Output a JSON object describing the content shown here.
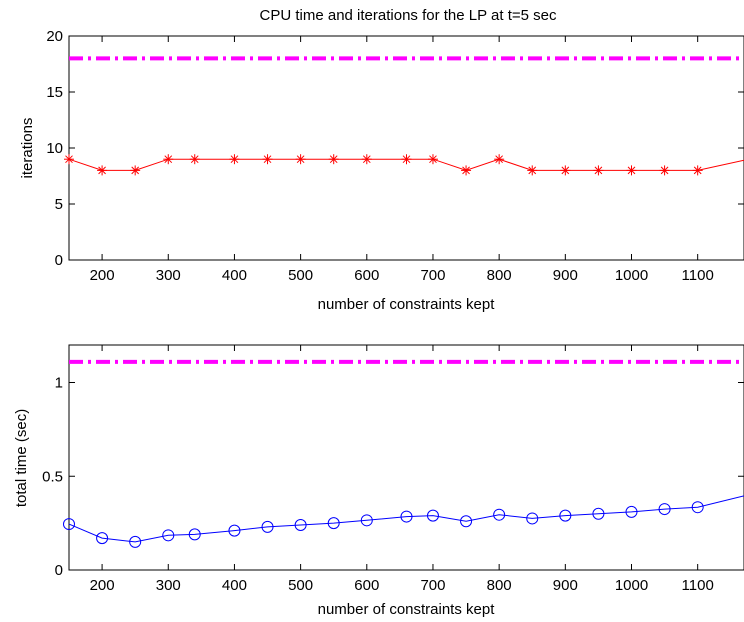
{
  "chart_data": [
    {
      "type": "line",
      "title": "CPU time and iterations for the LP at t=5 sec",
      "xlabel": "number of constraints kept",
      "ylabel": "iterations",
      "xlim": [
        150,
        1170
      ],
      "ylim": [
        0,
        20
      ],
      "xticks": [
        200,
        300,
        400,
        500,
        600,
        700,
        800,
        900,
        1000,
        1100
      ],
      "yticks": [
        0,
        5,
        10,
        15,
        20
      ],
      "grid": false,
      "series": [
        {
          "color": "#ff0000",
          "marker": "asterisk",
          "style": "solid",
          "x": [
            150,
            200,
            250,
            300,
            340,
            400,
            450,
            500,
            550,
            600,
            660,
            700,
            750,
            800,
            850,
            900,
            950,
            1000,
            1050,
            1100
          ],
          "y": [
            9,
            8,
            8,
            9,
            9,
            9,
            9,
            9,
            9,
            9,
            9,
            9,
            8,
            9,
            8,
            8,
            8,
            8,
            8,
            8
          ],
          "extends_to": [
            1170,
            8.9
          ]
        },
        {
          "color": "#ff00ff",
          "marker": "none",
          "style": "dash-dot",
          "x": [
            150,
            1170
          ],
          "y": [
            18,
            18
          ]
        }
      ]
    },
    {
      "type": "line",
      "title": "",
      "xlabel": "number of constraints kept",
      "ylabel": "total time (sec)",
      "xlim": [
        150,
        1170
      ],
      "ylim": [
        0,
        1.2
      ],
      "xticks": [
        200,
        300,
        400,
        500,
        600,
        700,
        800,
        900,
        1000,
        1100
      ],
      "yticks": [
        0,
        0.5,
        1
      ],
      "yticklabels": [
        "0",
        "0.5",
        "1"
      ],
      "grid": false,
      "series": [
        {
          "color": "#0000ff",
          "marker": "circle",
          "style": "solid",
          "x": [
            150,
            200,
            250,
            300,
            340,
            400,
            450,
            500,
            550,
            600,
            660,
            700,
            750,
            800,
            850,
            900,
            950,
            1000,
            1050,
            1100
          ],
          "y": [
            0.245,
            0.17,
            0.15,
            0.185,
            0.19,
            0.21,
            0.23,
            0.24,
            0.25,
            0.265,
            0.285,
            0.29,
            0.26,
            0.295,
            0.275,
            0.29,
            0.3,
            0.31,
            0.325,
            0.335
          ],
          "extends_to": [
            1170,
            0.395
          ]
        },
        {
          "color": "#ff00ff",
          "marker": "none",
          "style": "dash-dot",
          "x": [
            150,
            1170
          ],
          "y": [
            1.11,
            1.11
          ]
        }
      ]
    }
  ]
}
